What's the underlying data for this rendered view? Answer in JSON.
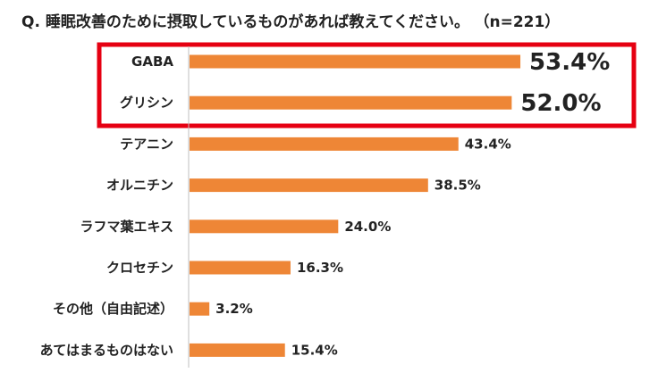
{
  "question": "Q. 睡眠改善のために摂取しているものがあれば教えてください。",
  "sample": "（n=221）",
  "colors": {
    "bar": "#EE8636",
    "highlight": "#E60012",
    "axis": "#BFBFBF"
  },
  "chart_data": {
    "type": "bar",
    "orientation": "horizontal",
    "title": "Q. 睡眠改善のために摂取しているものがあれば教えてください。",
    "categories": [
      "GABA",
      "グリシン",
      "テアニン",
      "オルニチン",
      "ラフマ葉エキス",
      "クロセチン",
      "その他（自由記述）",
      "あてはまるものはない"
    ],
    "values": [
      53.4,
      52.0,
      43.4,
      38.5,
      24.0,
      16.3,
      3.2,
      15.4
    ],
    "value_labels": [
      "53.4%",
      "52.0%",
      "43.4%",
      "38.5%",
      "24.0%",
      "16.3%",
      "3.2%",
      "15.4%"
    ],
    "unit": "%",
    "xlim": [
      0,
      60
    ],
    "highlighted_categories": [
      "GABA",
      "グリシン"
    ],
    "xlabel": "",
    "ylabel": "",
    "grid": false
  }
}
